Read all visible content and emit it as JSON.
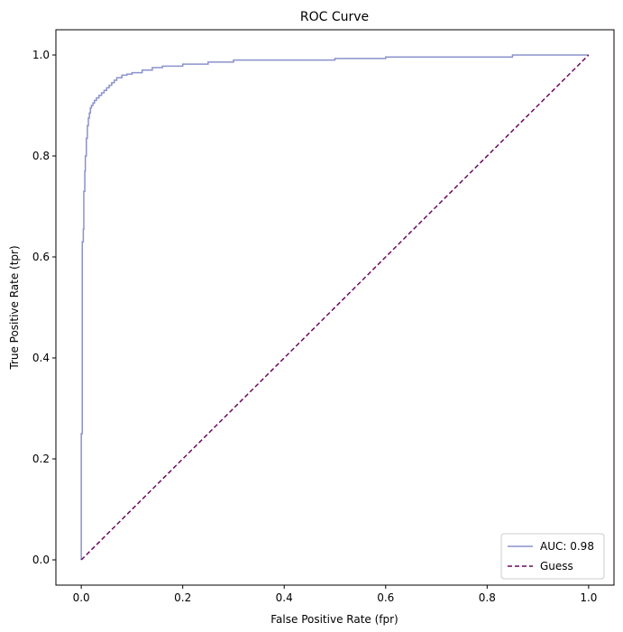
{
  "chart_data": {
    "type": "line",
    "title": "ROC Curve",
    "xlabel": "False Positive Rate (fpr)",
    "ylabel": "True Positive Rate (tpr)",
    "xlim": [
      -0.05,
      1.05
    ],
    "ylim": [
      -0.05,
      1.05
    ],
    "xticks": [
      0.0,
      0.2,
      0.4,
      0.6,
      0.8,
      1.0
    ],
    "yticks": [
      0.0,
      0.2,
      0.4,
      0.6,
      0.8,
      1.0
    ],
    "xtick_labels": [
      "0.0",
      "0.2",
      "0.4",
      "0.6",
      "0.8",
      "1.0"
    ],
    "ytick_labels": [
      "0.0",
      "0.2",
      "0.4",
      "0.6",
      "0.8",
      "1.0"
    ],
    "grid": false,
    "legend_position": "lower-right",
    "series": [
      {
        "name": "AUC: 0.98",
        "color": "#8a92cc",
        "style": "solid",
        "step": true,
        "x": [
          0.0,
          0.0,
          0.002,
          0.002,
          0.004,
          0.004,
          0.005,
          0.005,
          0.007,
          0.007,
          0.008,
          0.008,
          0.01,
          0.01,
          0.012,
          0.012,
          0.014,
          0.014,
          0.016,
          0.016,
          0.018,
          0.018,
          0.02,
          0.02,
          0.023,
          0.023,
          0.026,
          0.026,
          0.03,
          0.03,
          0.035,
          0.035,
          0.04,
          0.04,
          0.045,
          0.045,
          0.05,
          0.05,
          0.055,
          0.055,
          0.06,
          0.06,
          0.065,
          0.065,
          0.07,
          0.07,
          0.08,
          0.08,
          0.09,
          0.09,
          0.1,
          0.1,
          0.12,
          0.12,
          0.14,
          0.14,
          0.16,
          0.16,
          0.2,
          0.2,
          0.25,
          0.25,
          0.3,
          0.3,
          0.5,
          0.5,
          0.6,
          0.6,
          0.85,
          0.85,
          1.0
        ],
        "y": [
          0.0,
          0.25,
          0.25,
          0.63,
          0.63,
          0.655,
          0.655,
          0.73,
          0.73,
          0.77,
          0.77,
          0.8,
          0.8,
          0.835,
          0.835,
          0.86,
          0.86,
          0.875,
          0.875,
          0.885,
          0.885,
          0.895,
          0.895,
          0.9,
          0.9,
          0.905,
          0.905,
          0.91,
          0.91,
          0.915,
          0.915,
          0.92,
          0.92,
          0.925,
          0.925,
          0.93,
          0.93,
          0.935,
          0.935,
          0.94,
          0.94,
          0.945,
          0.945,
          0.95,
          0.95,
          0.955,
          0.955,
          0.96,
          0.96,
          0.962,
          0.962,
          0.965,
          0.965,
          0.97,
          0.97,
          0.975,
          0.975,
          0.978,
          0.978,
          0.982,
          0.982,
          0.986,
          0.986,
          0.99,
          0.99,
          0.993,
          0.993,
          0.996,
          0.996,
          1.0,
          1.0
        ]
      },
      {
        "name": "Guess",
        "color": "#6a0a5e",
        "style": "dashed",
        "x": [
          0.0,
          1.0
        ],
        "y": [
          0.0,
          1.0
        ]
      }
    ]
  }
}
